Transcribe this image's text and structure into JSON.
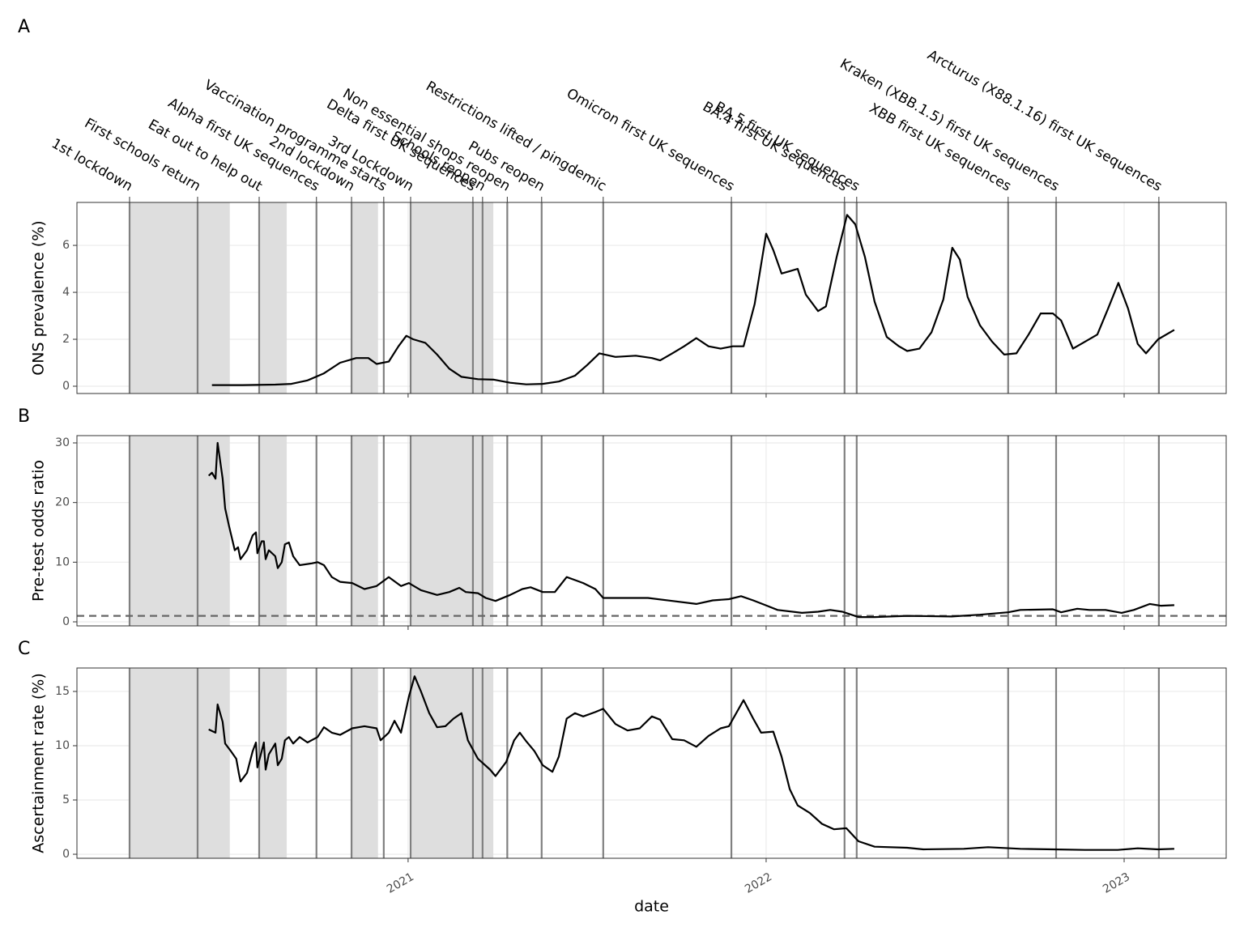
{
  "chart_data": [
    {
      "type": "line",
      "panel_label": "A",
      "ylabel": "ONS prevalence (%)",
      "color": "#000000",
      "xlim": [
        2020.075,
        2023.285
      ],
      "xticks": [
        2021,
        2022,
        2023
      ],
      "ylim": [
        -0.31,
        7.83
      ],
      "yticks": [
        0,
        2,
        4,
        6
      ],
      "grid": true,
      "x": [
        2020.452,
        2020.538,
        2020.629,
        2020.674,
        2020.719,
        2020.765,
        2020.81,
        2020.855,
        2020.889,
        2020.912,
        2020.946,
        2020.973,
        2020.995,
        2021.014,
        2021.048,
        2021.081,
        2021.115,
        2021.149,
        2021.195,
        2021.24,
        2021.285,
        2021.33,
        2021.376,
        2021.421,
        2021.466,
        2021.5,
        2021.534,
        2021.579,
        2021.636,
        2021.681,
        2021.704,
        2021.738,
        2021.771,
        2021.805,
        2021.839,
        2021.873,
        2021.907,
        2021.937,
        2021.968,
        2022.0,
        2022.02,
        2022.043,
        2022.066,
        2022.088,
        2022.111,
        2022.145,
        2022.167,
        2022.197,
        2022.226,
        2022.249,
        2022.276,
        2022.303,
        2022.337,
        2022.371,
        2022.394,
        2022.428,
        2022.462,
        2022.495,
        2022.52,
        2022.541,
        2022.563,
        2022.597,
        2022.631,
        2022.665,
        2022.699,
        2022.733,
        2022.767,
        2022.801,
        2022.824,
        2022.857,
        2022.891,
        2022.925,
        2022.955,
        2022.984,
        2023.011,
        2023.038,
        2023.061,
        2023.095,
        2023.14
      ],
      "values": [
        0.05,
        0.05,
        0.07,
        0.1,
        0.25,
        0.55,
        1.0,
        1.2,
        1.2,
        0.95,
        1.05,
        1.7,
        2.15,
        2.0,
        1.85,
        1.35,
        0.75,
        0.4,
        0.3,
        0.28,
        0.15,
        0.08,
        0.1,
        0.2,
        0.45,
        0.9,
        1.4,
        1.25,
        1.3,
        1.2,
        1.1,
        1.4,
        1.7,
        2.05,
        1.7,
        1.6,
        1.7,
        1.7,
        3.5,
        6.5,
        5.8,
        4.8,
        4.9,
        5.0,
        3.9,
        3.2,
        3.4,
        5.5,
        7.3,
        6.9,
        5.5,
        3.6,
        2.1,
        1.7,
        1.5,
        1.6,
        2.3,
        3.7,
        5.9,
        5.4,
        3.8,
        2.6,
        1.9,
        1.35,
        1.4,
        2.2,
        3.1,
        3.1,
        2.8,
        1.6,
        1.9,
        2.2,
        3.3,
        4.4,
        3.3,
        1.8,
        1.4,
        2.0,
        2.4
      ]
    },
    {
      "type": "line",
      "panel_label": "B",
      "ylabel": "Pre-test odds ratio",
      "color": "#000000",
      "reference_line": 1,
      "xlim": [
        2020.075,
        2023.285
      ],
      "xticks": [
        2021,
        2022,
        2023
      ],
      "ylim": [
        -0.68,
        31.22
      ],
      "yticks": [
        0,
        10,
        20,
        30
      ],
      "grid": true,
      "x": [
        2020.443,
        2020.452,
        2020.462,
        2020.468,
        2020.482,
        2020.489,
        2020.5,
        2020.516,
        2020.525,
        2020.532,
        2020.55,
        2020.566,
        2020.575,
        2020.579,
        2020.591,
        2020.597,
        2020.602,
        2020.611,
        2020.629,
        2020.636,
        2020.647,
        2020.656,
        2020.667,
        2020.679,
        2020.697,
        2020.731,
        2020.747,
        2020.765,
        2020.787,
        2020.81,
        2020.844,
        2020.878,
        2020.912,
        2020.946,
        2020.98,
        2021.002,
        2021.036,
        2021.081,
        2021.115,
        2021.143,
        2021.161,
        2021.195,
        2021.217,
        2021.244,
        2021.285,
        2021.319,
        2021.342,
        2021.376,
        2021.41,
        2021.443,
        2021.466,
        2021.489,
        2021.523,
        2021.545,
        2021.579,
        2021.67,
        2021.738,
        2021.805,
        2021.851,
        2021.896,
        2021.93,
        2021.964,
        2021.998,
        2022.032,
        2022.1,
        2022.145,
        2022.179,
        2022.213,
        2022.258,
        2022.303,
        2022.394,
        2022.518,
        2022.597,
        2022.676,
        2022.71,
        2022.801,
        2022.824,
        2022.869,
        2022.903,
        2022.948,
        2022.993,
        2023.027,
        2023.072,
        2023.102,
        2023.14
      ],
      "values": [
        24.5,
        25,
        24,
        30,
        24,
        19,
        16,
        12,
        12.5,
        10.5,
        12,
        14.5,
        15,
        11.5,
        13.5,
        13.5,
        10.5,
        12,
        11,
        9,
        10,
        13,
        13.3,
        11,
        9.5,
        9.8,
        10,
        9.5,
        7.5,
        6.7,
        6.5,
        5.5,
        6,
        7.5,
        6,
        6.5,
        5.3,
        4.5,
        5,
        5.7,
        5,
        4.8,
        4,
        3.5,
        4.5,
        5.5,
        5.8,
        5,
        5,
        7.5,
        7,
        6.5,
        5.5,
        4,
        4,
        4,
        3.5,
        3,
        3.6,
        3.8,
        4.3,
        3.6,
        2.8,
        2,
        1.5,
        1.7,
        2,
        1.7,
        0.8,
        0.8,
        1,
        0.9,
        1.2,
        1.6,
        2,
        2.1,
        1.6,
        2.2,
        2,
        2,
        1.5,
        2,
        3,
        2.7,
        2.8
      ]
    },
    {
      "type": "line",
      "panel_label": "C",
      "ylabel": "Ascertainment rate (%)",
      "xlabel": "date",
      "color": "#000000",
      "xlim": [
        2020.075,
        2023.285
      ],
      "xticks": [
        2021,
        2022,
        2023
      ],
      "ylim": [
        -0.37,
        17.16
      ],
      "yticks": [
        0,
        5,
        10,
        15
      ],
      "grid": true,
      "x": [
        2020.443,
        2020.462,
        2020.468,
        2020.482,
        2020.489,
        2020.505,
        2020.52,
        2020.527,
        2020.532,
        2020.55,
        2020.566,
        2020.575,
        2020.579,
        2020.591,
        2020.597,
        2020.602,
        2020.611,
        2020.629,
        2020.636,
        2020.647,
        2020.656,
        2020.667,
        2020.679,
        2020.697,
        2020.719,
        2020.747,
        2020.765,
        2020.787,
        2020.81,
        2020.844,
        2020.878,
        2020.912,
        2020.923,
        2020.946,
        2020.962,
        2020.98,
        2021.002,
        2021.018,
        2021.036,
        2021.059,
        2021.081,
        2021.104,
        2021.127,
        2021.149,
        2021.167,
        2021.195,
        2021.229,
        2021.244,
        2021.274,
        2021.296,
        2021.312,
        2021.33,
        2021.353,
        2021.376,
        2021.403,
        2021.421,
        2021.443,
        2021.466,
        2021.489,
        2021.523,
        2021.545,
        2021.579,
        2021.613,
        2021.647,
        2021.681,
        2021.704,
        2021.738,
        2021.771,
        2021.805,
        2021.839,
        2021.873,
        2021.896,
        2021.937,
        2021.964,
        2021.986,
        2022.02,
        2022.043,
        2022.066,
        2022.088,
        2022.122,
        2022.156,
        2022.19,
        2022.224,
        2022.258,
        2022.303,
        2022.394,
        2022.439,
        2022.552,
        2022.62,
        2022.71,
        2022.801,
        2022.891,
        2022.982,
        2023.038,
        2023.095,
        2023.14
      ],
      "values": [
        11.5,
        11.2,
        13.8,
        12.2,
        10.2,
        9.5,
        8.8,
        7.5,
        6.7,
        7.5,
        9.5,
        10.3,
        8,
        9.5,
        10.3,
        7.8,
        9.2,
        10.2,
        8.2,
        8.8,
        10.5,
        10.8,
        10.2,
        10.8,
        10.3,
        10.8,
        11.7,
        11.2,
        11,
        11.6,
        11.8,
        11.6,
        10.5,
        11.2,
        12.3,
        11.2,
        14.5,
        16.4,
        15,
        13,
        11.7,
        11.8,
        12.5,
        13,
        10.5,
        8.8,
        7.8,
        7.2,
        8.5,
        10.5,
        11.2,
        10.4,
        9.5,
        8.2,
        7.6,
        9,
        12.5,
        13,
        12.7,
        13.1,
        13.4,
        12,
        11.4,
        11.6,
        12.7,
        12.4,
        10.6,
        10.5,
        9.9,
        10.9,
        11.6,
        11.8,
        14.2,
        12.5,
        11.2,
        11.3,
        9,
        6,
        4.5,
        3.8,
        2.8,
        2.3,
        2.4,
        1.2,
        0.7,
        0.6,
        0.45,
        0.5,
        0.65,
        0.5,
        0.45,
        0.4,
        0.4,
        0.55,
        0.45,
        0.5
      ]
    }
  ],
  "events": [
    {
      "label": "1st lockdown",
      "x": 2020.222
    },
    {
      "label": "First schools return",
      "x": 2020.412
    },
    {
      "label": "Eat out to help out",
      "x": 2020.584
    },
    {
      "label": "Alpha first UK sequences",
      "x": 2020.744
    },
    {
      "label": "2nd lockdown",
      "x": 2020.842
    },
    {
      "label": "Vaccination programme starts",
      "x": 2020.932
    },
    {
      "label": "3rd Lockdown",
      "x": 2021.007
    },
    {
      "label": "Delta first UK sequences",
      "x": 2021.181
    },
    {
      "label": "Schools reopen",
      "x": 2021.208
    },
    {
      "label": "Non essential shops reopen",
      "x": 2021.277
    },
    {
      "label": "Pubs reopen",
      "x": 2021.373
    },
    {
      "label": "Restrictions lifted / pingdemic",
      "x": 2021.545
    },
    {
      "label": "Omicron first UK sequences",
      "x": 2021.903
    },
    {
      "label": "BA.4 first UK sequences",
      "x": 2022.219
    },
    {
      "label": "BA.5 first UK sequences",
      "x": 2022.253
    },
    {
      "label": "XBB first UK sequences",
      "x": 2022.676
    },
    {
      "label": "Kraken (XBB.1.5) first UK sequences",
      "x": 2022.81
    },
    {
      "label": "Arcturus (X88.1.16) first UK sequences",
      "x": 2023.097
    }
  ],
  "shaded_periods": [
    [
      2020.222,
      2020.502
    ],
    [
      2020.584,
      2020.661
    ],
    [
      2020.842,
      2020.916
    ],
    [
      2021.007,
      2021.238
    ]
  ]
}
